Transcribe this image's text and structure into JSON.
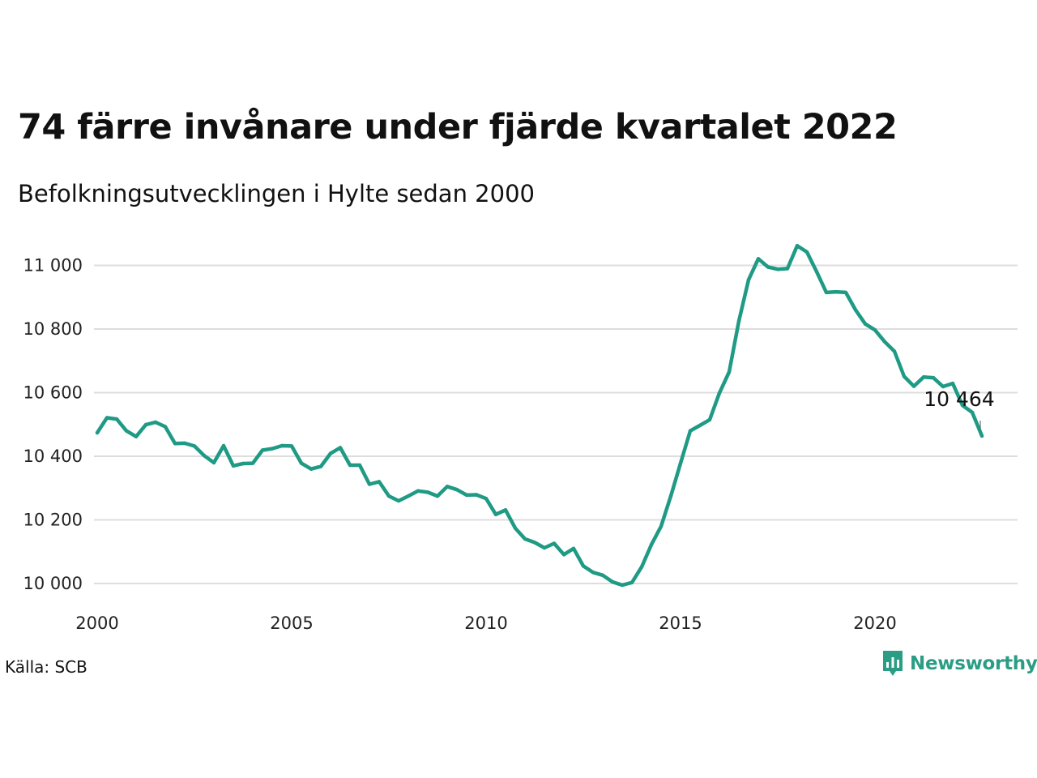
{
  "header": {
    "title": "74 färre invånare under fjärde kvartalet 2022",
    "subtitle": "Befolkningsutvecklingen i Hylte sedan 2000"
  },
  "footer": {
    "source": "Källa: SCB",
    "brand": "Newsworthy",
    "brand_icon": "newsworthy-logo-icon"
  },
  "colors": {
    "line": "#1f9a84",
    "grid": "#dddddd",
    "brand": "#2a9d84"
  },
  "chart_data": {
    "type": "line",
    "title": "74 färre invånare under fjärde kvartalet 2022",
    "subtitle": "Befolkningsutvecklingen i Hylte sedan 2000",
    "xlabel": "",
    "ylabel": "",
    "xlim": [
      2000,
      2023.8
    ],
    "ylim": [
      9980,
      11060
    ],
    "x_ticks": [
      "2000",
      "2005",
      "2010",
      "2015",
      "2020"
    ],
    "y_ticks": [
      "10 000",
      "10 200",
      "10 400",
      "10 600",
      "10 800",
      "11 000"
    ],
    "grid": true,
    "legend": "none",
    "end_label": "10 464",
    "series": [
      {
        "x": [
          2000.0,
          2000.25,
          2000.5,
          2000.75,
          2001.0,
          2001.25,
          2001.5,
          2001.75,
          2002.0,
          2002.25,
          2002.5,
          2002.75,
          2003.0,
          2003.25,
          2003.5,
          2003.75,
          2004.0,
          2004.25,
          2004.5,
          2004.75,
          2005.0,
          2005.25,
          2005.5,
          2005.75,
          2006.0,
          2006.25,
          2006.5,
          2006.75,
          2007.0,
          2007.25,
          2007.5,
          2007.75,
          2008.0,
          2008.25,
          2008.5,
          2008.75,
          2009.0,
          2009.25,
          2009.5,
          2009.75,
          2010.0,
          2010.25,
          2010.5,
          2010.75,
          2011.0,
          2011.25,
          2011.5,
          2011.75,
          2012.0,
          2012.25,
          2012.5,
          2012.75,
          2013.0,
          2013.25,
          2013.5,
          2013.75,
          2014.0,
          2014.25,
          2014.5,
          2014.75,
          2015.0,
          2015.25,
          2015.5,
          2015.75,
          2016.0,
          2016.25,
          2016.5,
          2016.75,
          2017.0,
          2017.25,
          2017.5,
          2017.75,
          2018.0,
          2018.25,
          2018.5,
          2018.75,
          2019.0,
          2019.25,
          2019.5,
          2019.75,
          2020.0,
          2020.25,
          2020.5,
          2020.75,
          2021.0,
          2021.25,
          2021.5,
          2021.75,
          2022.0,
          2022.25,
          2022.5,
          2022.75
        ],
        "values": [
          10474,
          10521,
          10517,
          10480,
          10462,
          10499,
          10507,
          10493,
          10440,
          10441,
          10432,
          10402,
          10380,
          10433,
          10370,
          10377,
          10378,
          10419,
          10424,
          10433,
          10432,
          10378,
          10360,
          10368,
          10409,
          10427,
          10372,
          10372,
          10312,
          10320,
          10275,
          10260,
          10275,
          10291,
          10287,
          10275,
          10305,
          10295,
          10278,
          10279,
          10267,
          10217,
          10231,
          10174,
          10140,
          10129,
          10112,
          10126,
          10091,
          10110,
          10055,
          10035,
          10026,
          10005,
          9995,
          10003,
          10052,
          10122,
          10180,
          10275,
          10378,
          10480,
          10497,
          10515,
          10599,
          10665,
          10825,
          10955,
          11021,
          10995,
          10988,
          10990,
          11062,
          11042,
          10980,
          10915,
          10917,
          10915,
          10860,
          10816,
          10797,
          10760,
          10730,
          10651,
          10620,
          10649,
          10647,
          10619,
          10629,
          10560,
          10538,
          10464
        ]
      }
    ]
  }
}
